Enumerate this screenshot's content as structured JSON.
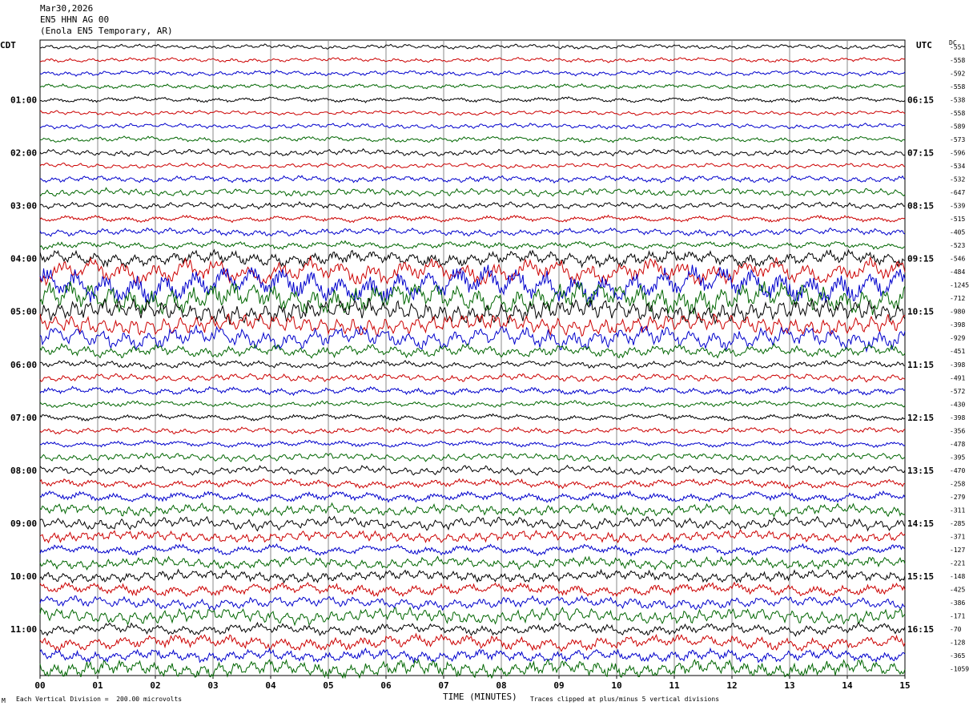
{
  "header": {
    "date": "Mar30,2026",
    "channel": "EN5 HHN AG 00",
    "station": "(Enola EN5 Temporary, AR)"
  },
  "left_zone": "CDT",
  "right_zone": "UTC",
  "dc_label": "DC",
  "footer": {
    "scale_note": "Each Vertical Division =  200.00 microvolts",
    "clip_note": "Traces clipped at plus/minus 5 vertical divisions",
    "corner_mark": "M"
  },
  "chart_data": {
    "type": "line",
    "title": "",
    "xlabel": "TIME (MINUTES)",
    "ylabel": "",
    "xlim": [
      0,
      15
    ],
    "x_ticks": [
      "00",
      "01",
      "02",
      "03",
      "04",
      "05",
      "06",
      "07",
      "08",
      "09",
      "10",
      "11",
      "12",
      "13",
      "14",
      "15"
    ],
    "trace_colors": [
      "#000000",
      "#cc0000",
      "#0000cc",
      "#006600"
    ],
    "rows_per_hour": 4,
    "left_hour_labels": [
      "01:00",
      "02:00",
      "03:00",
      "04:00",
      "05:00",
      "06:00",
      "07:00",
      "08:00",
      "09:00",
      "10:00",
      "11:00"
    ],
    "right_hour_labels": [
      "06:15",
      "07:15",
      "08:15",
      "09:15",
      "10:15",
      "11:15",
      "12:15",
      "13:15",
      "14:15",
      "15:15",
      "16:15"
    ],
    "dc_offsets": [
      "-551",
      "-558",
      "-592",
      "-558",
      "-538",
      "-558",
      "-589",
      "-573",
      "-596",
      "-534",
      "-532",
      "-647",
      "-539",
      "-515",
      "-405",
      "-523",
      "-546",
      "-484",
      "-1245",
      "-712",
      "-980",
      "-398",
      "-929",
      "-451",
      "-398",
      "-491",
      "-572",
      "-430",
      "-398",
      "-356",
      "-478",
      "-395",
      "-470",
      "-258",
      "-279",
      "-311",
      "-285",
      "-371",
      "-127",
      "-221",
      "-148",
      "-425",
      "-386",
      "-171",
      "-70",
      "-128",
      "-365",
      "-1059"
    ],
    "rows": 48,
    "amplitude_profile": [
      0.18,
      0.18,
      0.2,
      0.18,
      0.2,
      0.18,
      0.2,
      0.22,
      0.25,
      0.2,
      0.25,
      0.3,
      0.25,
      0.25,
      0.3,
      0.3,
      0.6,
      1.0,
      1.4,
      1.2,
      0.9,
      0.8,
      0.9,
      0.5,
      0.3,
      0.3,
      0.3,
      0.25,
      0.25,
      0.25,
      0.25,
      0.3,
      0.35,
      0.35,
      0.4,
      0.45,
      0.5,
      0.45,
      0.4,
      0.45,
      0.45,
      0.5,
      0.5,
      0.6,
      0.45,
      0.6,
      0.5,
      0.7
    ]
  }
}
